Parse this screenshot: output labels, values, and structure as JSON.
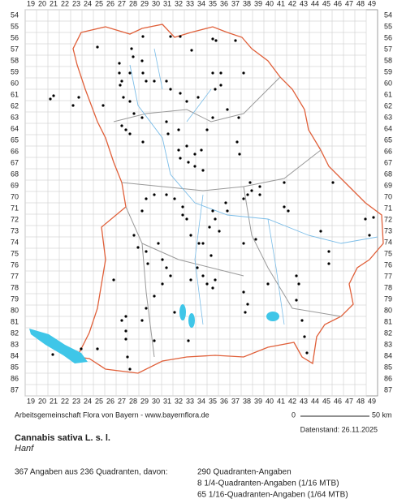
{
  "map": {
    "columns": [
      19,
      20,
      21,
      22,
      23,
      24,
      25,
      26,
      27,
      28,
      29,
      30,
      31,
      32,
      33,
      34,
      35,
      36,
      37,
      38,
      39,
      40,
      41,
      42,
      43,
      44,
      45,
      46,
      47,
      48,
      49
    ],
    "rows": [
      54,
      55,
      56,
      57,
      58,
      59,
      60,
      61,
      62,
      63,
      64,
      65,
      66,
      67,
      68,
      69,
      70,
      71,
      72,
      73,
      74,
      75,
      76,
      77,
      78,
      79,
      80,
      81,
      82,
      83,
      84,
      85,
      86,
      87
    ],
    "credit": "Arbeitsgemeinschaft Flora von Bayern - www.bayernflora.de",
    "scale": {
      "start": "0",
      "end": "50 km"
    },
    "date": "Datenstand: 26.11.2025",
    "species": {
      "name": "Cannabis sativa L. s. l.",
      "common": "Hanf"
    },
    "summary": "367 Angaben aus 236 Quadranten, davon:",
    "breakdown": [
      "290 Quadranten-Angaben",
      "8 1/4-Quadranten-Angaben (1/16 MTB)",
      "65 1/16-Quadranten-Angaben (1/64 MTB)"
    ]
  }
}
